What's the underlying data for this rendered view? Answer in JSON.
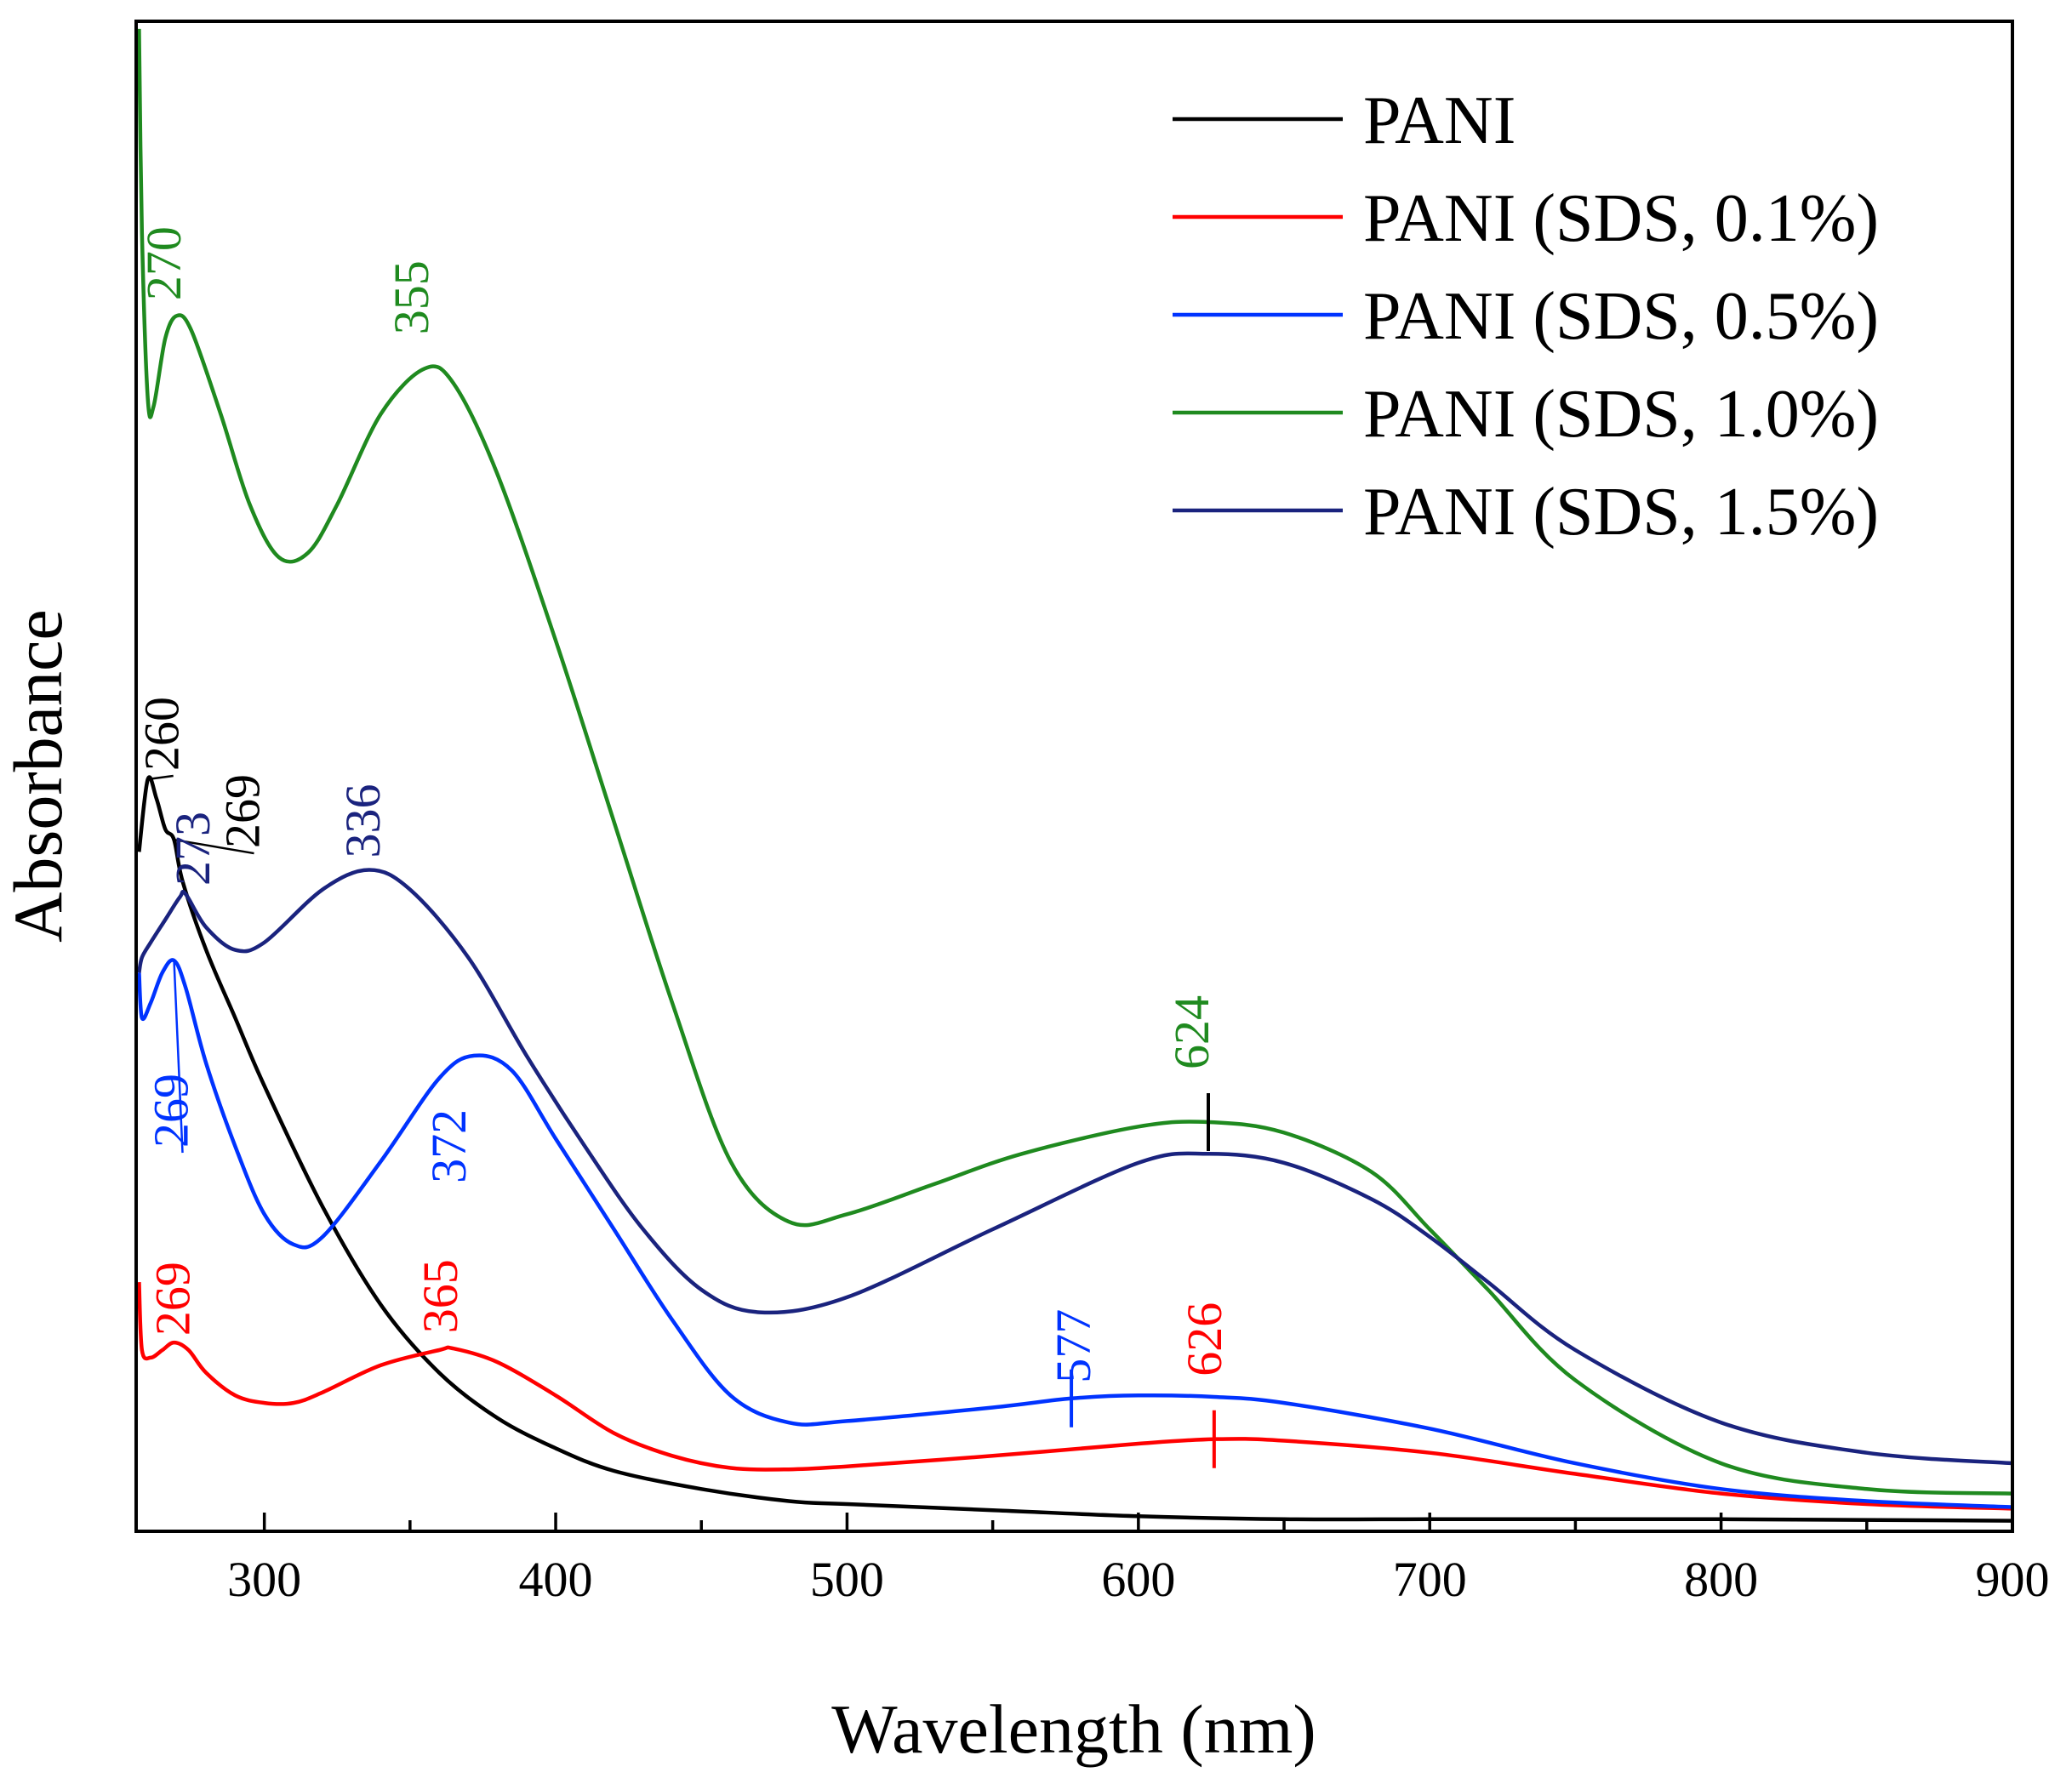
{
  "chart_data": {
    "type": "line",
    "title": "",
    "xlabel": "Wavelength (nm)",
    "ylabel": "Absorbance",
    "xlim": [
      256,
      900
    ],
    "ylim": [
      0,
      1.0
    ],
    "x_ticks": [
      300,
      400,
      500,
      600,
      700,
      800,
      900
    ],
    "y_ticks_shown": false,
    "grid": false,
    "legend_position": "top-right",
    "series": [
      {
        "name": "PANI",
        "color": "#000000",
        "points": [
          [
            257,
            0.45
          ],
          [
            260,
            0.498
          ],
          [
            263,
            0.485
          ],
          [
            266,
            0.465
          ],
          [
            269,
            0.458
          ],
          [
            272,
            0.43
          ],
          [
            280,
            0.385
          ],
          [
            290,
            0.34
          ],
          [
            300,
            0.295
          ],
          [
            320,
            0.215
          ],
          [
            340,
            0.15
          ],
          [
            360,
            0.105
          ],
          [
            380,
            0.075
          ],
          [
            400,
            0.055
          ],
          [
            420,
            0.04
          ],
          [
            450,
            0.028
          ],
          [
            480,
            0.02
          ],
          [
            500,
            0.018
          ],
          [
            550,
            0.014
          ],
          [
            600,
            0.01
          ],
          [
            650,
            0.008
          ],
          [
            700,
            0.008
          ],
          [
            750,
            0.008
          ],
          [
            800,
            0.008
          ],
          [
            900,
            0.007
          ]
        ]
      },
      {
        "name": "PANI (SDS, 0.1%)",
        "color": "#ff0000",
        "points": [
          [
            257,
            0.165
          ],
          [
            258,
            0.12
          ],
          [
            261,
            0.115
          ],
          [
            265,
            0.12
          ],
          [
            269,
            0.125
          ],
          [
            274,
            0.12
          ],
          [
            280,
            0.105
          ],
          [
            290,
            0.09
          ],
          [
            300,
            0.085
          ],
          [
            310,
            0.085
          ],
          [
            320,
            0.092
          ],
          [
            340,
            0.11
          ],
          [
            360,
            0.12
          ],
          [
            365,
            0.121
          ],
          [
            380,
            0.112
          ],
          [
            400,
            0.09
          ],
          [
            420,
            0.065
          ],
          [
            440,
            0.05
          ],
          [
            460,
            0.042
          ],
          [
            480,
            0.041
          ],
          [
            500,
            0.043
          ],
          [
            550,
            0.05
          ],
          [
            600,
            0.058
          ],
          [
            626,
            0.061
          ],
          [
            650,
            0.06
          ],
          [
            700,
            0.052
          ],
          [
            750,
            0.038
          ],
          [
            800,
            0.025
          ],
          [
            850,
            0.018
          ],
          [
            900,
            0.015
          ]
        ]
      },
      {
        "name": "PANI (SDS, 0.5%)",
        "color": "#0033ff",
        "points": [
          [
            257,
            0.37
          ],
          [
            258,
            0.34
          ],
          [
            261,
            0.35
          ],
          [
            265,
            0.37
          ],
          [
            269,
            0.378
          ],
          [
            273,
            0.36
          ],
          [
            280,
            0.31
          ],
          [
            290,
            0.255
          ],
          [
            300,
            0.21
          ],
          [
            310,
            0.19
          ],
          [
            320,
            0.195
          ],
          [
            340,
            0.245
          ],
          [
            360,
            0.3
          ],
          [
            372,
            0.315
          ],
          [
            385,
            0.305
          ],
          [
            400,
            0.26
          ],
          [
            420,
            0.2
          ],
          [
            440,
            0.14
          ],
          [
            460,
            0.09
          ],
          [
            480,
            0.072
          ],
          [
            500,
            0.073
          ],
          [
            550,
            0.082
          ],
          [
            577,
            0.088
          ],
          [
            600,
            0.09
          ],
          [
            626,
            0.089
          ],
          [
            650,
            0.085
          ],
          [
            700,
            0.068
          ],
          [
            750,
            0.045
          ],
          [
            800,
            0.028
          ],
          [
            850,
            0.02
          ],
          [
            900,
            0.016
          ]
        ]
      },
      {
        "name": "PANI (SDS, 1.0%)",
        "color": "#1f8a1f",
        "points": [
          [
            257,
            0.995
          ],
          [
            258,
            0.86
          ],
          [
            260,
            0.75
          ],
          [
            262,
            0.745
          ],
          [
            266,
            0.79
          ],
          [
            270,
            0.805
          ],
          [
            275,
            0.795
          ],
          [
            285,
            0.74
          ],
          [
            295,
            0.68
          ],
          [
            305,
            0.645
          ],
          [
            315,
            0.648
          ],
          [
            325,
            0.68
          ],
          [
            340,
            0.74
          ],
          [
            355,
            0.77
          ],
          [
            365,
            0.76
          ],
          [
            380,
            0.7
          ],
          [
            400,
            0.59
          ],
          [
            420,
            0.47
          ],
          [
            440,
            0.35
          ],
          [
            460,
            0.245
          ],
          [
            480,
            0.205
          ],
          [
            500,
            0.21
          ],
          [
            530,
            0.23
          ],
          [
            560,
            0.25
          ],
          [
            600,
            0.268
          ],
          [
            624,
            0.271
          ],
          [
            650,
            0.264
          ],
          [
            680,
            0.238
          ],
          [
            700,
            0.2
          ],
          [
            720,
            0.16
          ],
          [
            750,
            0.1
          ],
          [
            800,
            0.045
          ],
          [
            850,
            0.028
          ],
          [
            900,
            0.025
          ]
        ]
      },
      {
        "name": "PANI (SDS, 1.5%)",
        "color": "#1a237e",
        "points": [
          [
            257,
            0.37
          ],
          [
            258,
            0.38
          ],
          [
            261,
            0.39
          ],
          [
            266,
            0.405
          ],
          [
            271,
            0.42
          ],
          [
            273,
            0.422
          ],
          [
            280,
            0.4
          ],
          [
            290,
            0.385
          ],
          [
            300,
            0.39
          ],
          [
            320,
            0.425
          ],
          [
            336,
            0.438
          ],
          [
            350,
            0.425
          ],
          [
            370,
            0.38
          ],
          [
            390,
            0.315
          ],
          [
            410,
            0.255
          ],
          [
            430,
            0.2
          ],
          [
            450,
            0.16
          ],
          [
            470,
            0.145
          ],
          [
            500,
            0.155
          ],
          [
            550,
            0.2
          ],
          [
            600,
            0.244
          ],
          [
            624,
            0.25
          ],
          [
            650,
            0.244
          ],
          [
            680,
            0.22
          ],
          [
            700,
            0.195
          ],
          [
            720,
            0.165
          ],
          [
            750,
            0.12
          ],
          [
            800,
            0.072
          ],
          [
            850,
            0.052
          ],
          [
            900,
            0.045
          ]
        ]
      }
    ],
    "annotations": [
      {
        "text": "270",
        "x": 270,
        "series": "PANI (SDS, 1.0%)",
        "color": "#1f8a1f"
      },
      {
        "text": "355",
        "x": 355,
        "series": "PANI (SDS, 1.0%)",
        "color": "#1f8a1f"
      },
      {
        "text": "624",
        "x": 624,
        "series": "PANI (SDS, 1.0%)",
        "color": "#1f8a1f"
      },
      {
        "text": "260",
        "x": 260,
        "series": "PANI",
        "color": "#000000"
      },
      {
        "text": "269",
        "x": 269,
        "series": "PANI",
        "color": "#000000"
      },
      {
        "text": "336",
        "x": 336,
        "series": "PANI (SDS, 1.5%)",
        "color": "#1a237e"
      },
      {
        "text": "273",
        "x": 273,
        "series": "PANI (SDS, 1.5%)",
        "color": "#1a237e"
      },
      {
        "text": "269",
        "x": 269,
        "series": "PANI (SDS, 0.5%)",
        "color": "#0033ff"
      },
      {
        "text": "372",
        "x": 372,
        "series": "PANI (SDS, 0.5%)",
        "color": "#0033ff"
      },
      {
        "text": "577",
        "x": 577,
        "series": "PANI (SDS, 0.5%)",
        "color": "#0033ff"
      },
      {
        "text": "269",
        "x": 269,
        "series": "PANI (SDS, 0.1%)",
        "color": "#ff0000"
      },
      {
        "text": "365",
        "x": 365,
        "series": "PANI (SDS, 0.1%)",
        "color": "#ff0000"
      },
      {
        "text": "626",
        "x": 626,
        "series": "PANI (SDS, 0.1%)",
        "color": "#ff0000"
      }
    ]
  }
}
